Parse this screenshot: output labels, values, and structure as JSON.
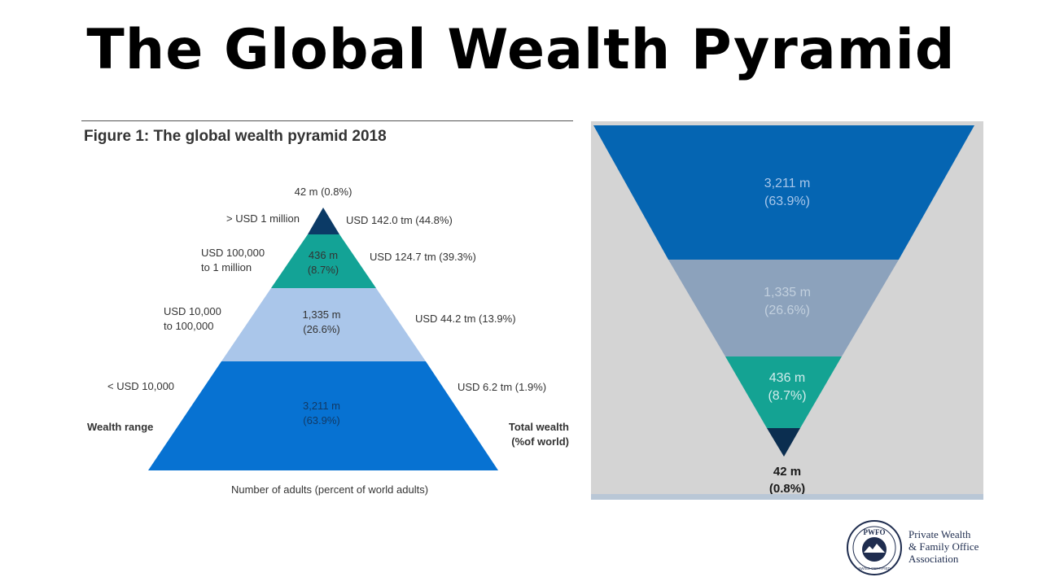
{
  "page": {
    "title": "The Global Wealth Pyramid"
  },
  "left_figure": {
    "heading": "Figure 1: The global wealth pyramid 2018",
    "top_label": "42 m (0.8%)",
    "layers": [
      {
        "range": "> USD 1 million",
        "adults": "",
        "wealth": "USD 142.0 tm (44.8%)",
        "color": "#0b3a66"
      },
      {
        "range": "USD 100,000\nto 1 million",
        "adults": "436 m\n(8.7%)",
        "wealth": "USD 124.7 tm (39.3%)",
        "color": "#13a396"
      },
      {
        "range": "USD 10,000\nto 100,000",
        "adults": "1,335 m\n(26.6%)",
        "wealth": "USD 44.2 tm (13.9%)",
        "color": "#aac6ea"
      },
      {
        "range": "< USD 10,000",
        "adults": "3,211 m\n(63.9%)",
        "wealth": "USD 6.2 tm (1.9%)",
        "color": "#0772d2"
      }
    ],
    "left_axis_label": "Wealth range",
    "right_axis_label": "Total wealth\n(%of world)",
    "bottom_label": "Number of adults (percent of world adults)"
  },
  "right_figure": {
    "layers": [
      {
        "adults": "3,211 m",
        "pct": "(63.9%)",
        "color": "#0565b2",
        "text_color": "#a9c7ea"
      },
      {
        "adults": "1,335 m",
        "pct": "(26.6%)",
        "color": "#8ca2bc",
        "text_color": "#c2d0de"
      },
      {
        "adults": "436 m",
        "pct": "(8.7%)",
        "color": "#14a393",
        "text_color": "#d2ecec"
      },
      {
        "adults": "42 m",
        "pct": "(0.8%)",
        "color": "#0b2e50",
        "text_color": "#1a1a1a"
      }
    ]
  },
  "logo": {
    "seal_text": "PWFO",
    "seal_subtext": "SWISS CERTIFIED",
    "org_line1": "Private Wealth",
    "org_line2": "& Family Office",
    "org_line3": "Association",
    "color": "#1f2d4f"
  }
}
